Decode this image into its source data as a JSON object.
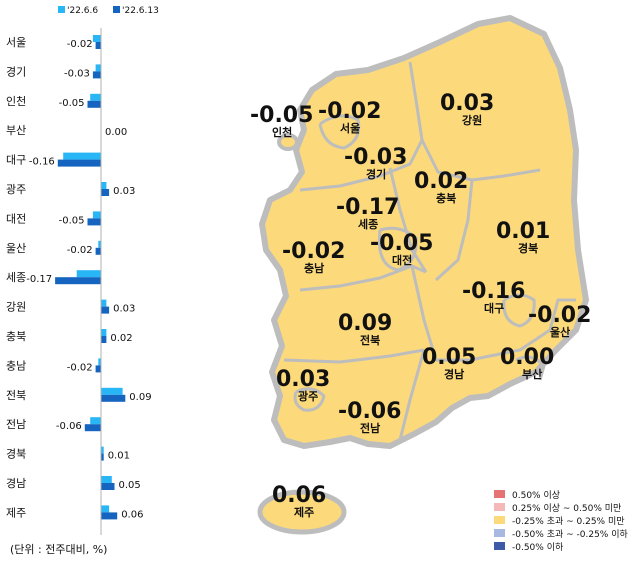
{
  "chart_data": {
    "type": "bar",
    "orientation": "horizontal",
    "categories": [
      "서울",
      "경기",
      "인천",
      "부산",
      "대구",
      "광주",
      "대전",
      "울산",
      "세종",
      "강원",
      "충북",
      "충남",
      "전북",
      "전남",
      "경북",
      "경남",
      "제주"
    ],
    "series": [
      {
        "name": "'22.6.6",
        "color": "#29b6f6",
        "values": [
          -0.03,
          -0.02,
          -0.04,
          0.0,
          -0.14,
          0.02,
          -0.03,
          -0.01,
          -0.09,
          0.02,
          0.02,
          -0.01,
          0.08,
          -0.04,
          0.01,
          0.04,
          0.03
        ]
      },
      {
        "name": "'22.6.13",
        "color": "#1565c0",
        "values": [
          -0.02,
          -0.03,
          -0.05,
          0.0,
          -0.16,
          0.03,
          -0.05,
          -0.02,
          -0.17,
          0.03,
          0.02,
          -0.02,
          0.09,
          -0.06,
          0.01,
          0.05,
          0.06
        ]
      }
    ],
    "value_labels": [
      "-0.02",
      "-0.03",
      "-0.05",
      "0.00",
      "-0.16",
      "0.03",
      "-0.05",
      "-0.02",
      "-0.17",
      "0.03",
      "0.02",
      "-0.02",
      "0.09",
      "-0.06",
      "0.01",
      "0.05",
      "0.06"
    ],
    "unit_note": "(단위 : 전주대비, %)",
    "legend_placement": "top"
  },
  "map": {
    "regions": [
      {
        "name": "서울",
        "value": "-0.02"
      },
      {
        "name": "인천",
        "value": "-0.05"
      },
      {
        "name": "강원",
        "value": "0.03"
      },
      {
        "name": "경기",
        "value": "-0.03"
      },
      {
        "name": "충북",
        "value": "0.02"
      },
      {
        "name": "세종",
        "value": "-0.17"
      },
      {
        "name": "충남",
        "value": "-0.02"
      },
      {
        "name": "대전",
        "value": "-0.05"
      },
      {
        "name": "경북",
        "value": "0.01"
      },
      {
        "name": "대구",
        "value": "-0.16"
      },
      {
        "name": "울산",
        "value": "-0.02"
      },
      {
        "name": "전북",
        "value": "0.09"
      },
      {
        "name": "경남",
        "value": "0.05"
      },
      {
        "name": "부산",
        "value": "0.00"
      },
      {
        "name": "광주",
        "value": "0.03"
      },
      {
        "name": "전남",
        "value": "-0.06"
      },
      {
        "name": "제주",
        "value": "0.06"
      }
    ],
    "fill_color": "#fcd97a",
    "border_color": "#bdbdbd",
    "legend": [
      {
        "label": "0.50% 이상",
        "color": "#e57373"
      },
      {
        "label": "0.25% 이상 ~ 0.50% 미만",
        "color": "#f4b8b8"
      },
      {
        "label": "-0.25% 초과 ~ 0.25% 미만",
        "color": "#fcd97a"
      },
      {
        "label": "-0.50% 초과 ~ -0.25% 이하",
        "color": "#a8b8e0"
      },
      {
        "label": "-0.50% 이하",
        "color": "#3d5aa8"
      }
    ]
  }
}
